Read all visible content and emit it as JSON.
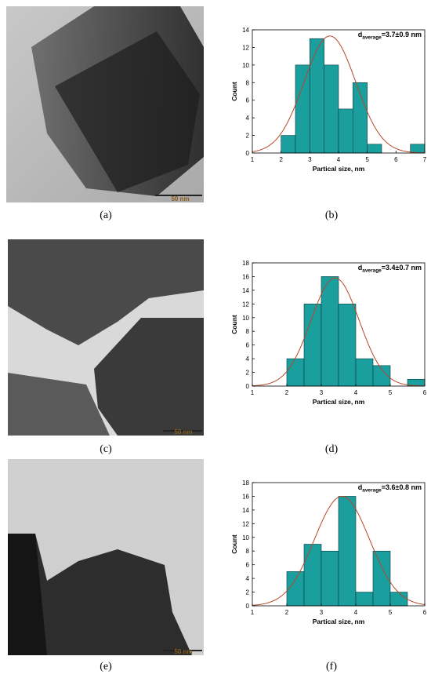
{
  "chart_data": [
    {
      "type": "histogram",
      "xlabel": "Partical size, nm",
      "ylabel": "Count",
      "annotation": {
        "symbol": "d",
        "subscript": "average",
        "text": "=3.7±0.9 nm"
      },
      "bins": [
        2,
        2.5,
        3,
        3.5,
        4,
        4.5,
        5,
        5.5,
        6,
        6.5,
        7
      ],
      "values": [
        2,
        10,
        13,
        10,
        5,
        8,
        1,
        0,
        0,
        1
      ],
      "color": "#1a9e9e",
      "xlim": [
        1,
        7
      ],
      "xticks": [
        1,
        2,
        3,
        4,
        5,
        6,
        7
      ],
      "ylim": [
        0,
        14
      ],
      "yticks": [
        0,
        2,
        4,
        6,
        8,
        10,
        12,
        14
      ],
      "fit": {
        "mean": 3.7,
        "sd": 0.9,
        "peak": 13.3,
        "color": "#b5482a"
      }
    },
    {
      "type": "histogram",
      "xlabel": "Partical size, nm",
      "ylabel": "Count",
      "annotation": {
        "symbol": "d",
        "subscript": "average",
        "text": "=3.4±0.7 nm"
      },
      "bins": [
        2,
        2.5,
        3,
        3.5,
        4,
        4.5,
        5,
        5.5,
        6
      ],
      "values": [
        4,
        12,
        16,
        12,
        4,
        3,
        0,
        1
      ],
      "color": "#1a9e9e",
      "xlim": [
        1,
        6
      ],
      "xticks": [
        1,
        2,
        3,
        4,
        5,
        6
      ],
      "ylim": [
        0,
        18
      ],
      "yticks": [
        0,
        2,
        4,
        6,
        8,
        10,
        12,
        14,
        16,
        18
      ],
      "fit": {
        "mean": 3.4,
        "sd": 0.7,
        "peak": 15.8,
        "color": "#b5482a"
      }
    },
    {
      "type": "histogram",
      "xlabel": "Partical size, nm",
      "ylabel": "Count",
      "annotation": {
        "symbol": "d",
        "subscript": "average",
        "text": "=3.6±0.8 nm"
      },
      "bins": [
        2,
        2.5,
        3,
        3.5,
        4,
        4.5,
        5,
        5.5
      ],
      "values": [
        5,
        9,
        8,
        16,
        2,
        8,
        2
      ],
      "color": "#1a9e9e",
      "xlim": [
        1,
        6
      ],
      "xticks": [
        1,
        2,
        3,
        4,
        5,
        6
      ],
      "ylim": [
        0,
        18
      ],
      "yticks": [
        0,
        2,
        4,
        6,
        8,
        10,
        12,
        14,
        16,
        18
      ],
      "fit": {
        "mean": 3.6,
        "sd": 0.8,
        "peak": 16,
        "color": "#b5482a"
      }
    }
  ],
  "captions": [
    "(a)",
    "(b)",
    "(c)",
    "(d)",
    "(e)",
    "(f)"
  ],
  "scale_bars": [
    "50 nm",
    "50 nm",
    "50 nm"
  ]
}
